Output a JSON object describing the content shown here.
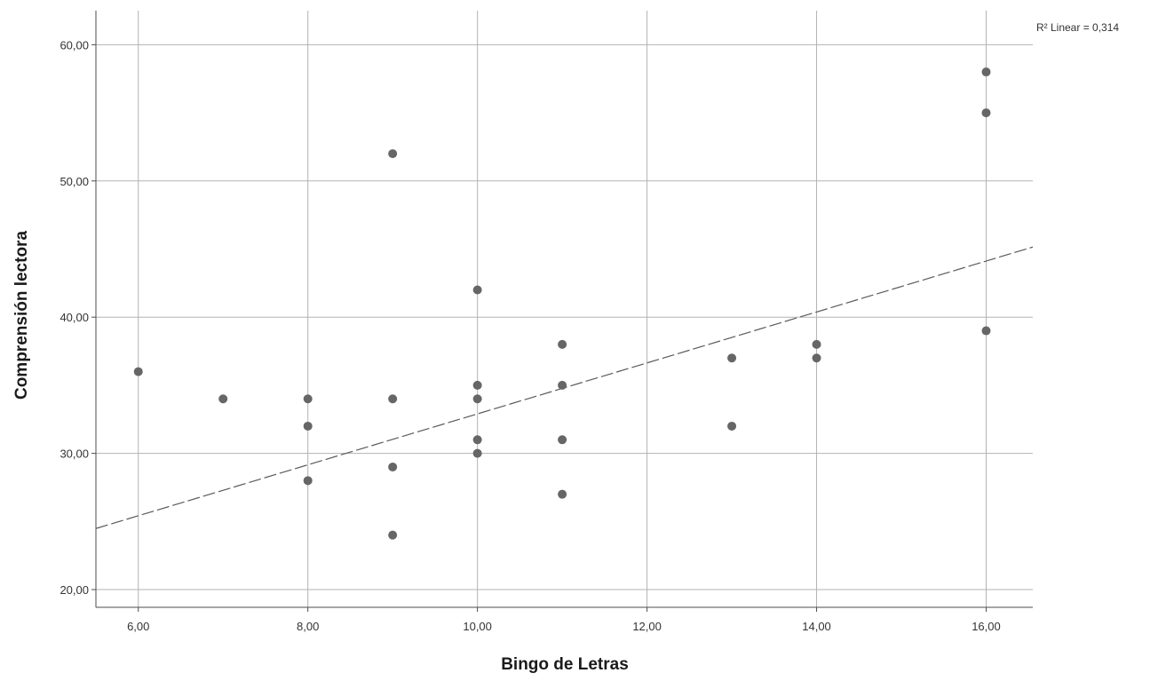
{
  "chart_data": {
    "type": "scatter",
    "xlabel": "Bingo de Letras",
    "ylabel": "Comprensión lectora",
    "xlim": [
      5.5,
      16.55
    ],
    "ylim": [
      18.7,
      62.5
    ],
    "x_ticks": [
      6,
      8,
      10,
      12,
      14,
      16
    ],
    "x_tick_labels": [
      "6,00",
      "8,00",
      "10,00",
      "12,00",
      "14,00",
      "16,00"
    ],
    "y_ticks": [
      20,
      30,
      40,
      50,
      60
    ],
    "y_tick_labels": [
      "20,00",
      "30,00",
      "40,00",
      "50,00",
      "60,00"
    ],
    "grid": true,
    "points": [
      {
        "x": 6,
        "y": 36
      },
      {
        "x": 7,
        "y": 34
      },
      {
        "x": 8,
        "y": 34
      },
      {
        "x": 8,
        "y": 32
      },
      {
        "x": 8,
        "y": 28
      },
      {
        "x": 9,
        "y": 52
      },
      {
        "x": 9,
        "y": 34
      },
      {
        "x": 9,
        "y": 29
      },
      {
        "x": 9,
        "y": 24
      },
      {
        "x": 10,
        "y": 42
      },
      {
        "x": 10,
        "y": 35
      },
      {
        "x": 10,
        "y": 34
      },
      {
        "x": 10,
        "y": 31
      },
      {
        "x": 10,
        "y": 30
      },
      {
        "x": 11,
        "y": 38
      },
      {
        "x": 11,
        "y": 35
      },
      {
        "x": 11,
        "y": 31
      },
      {
        "x": 11,
        "y": 27
      },
      {
        "x": 13,
        "y": 37
      },
      {
        "x": 13,
        "y": 32
      },
      {
        "x": 14,
        "y": 38
      },
      {
        "x": 14,
        "y": 37
      },
      {
        "x": 16,
        "y": 58
      },
      {
        "x": 16,
        "y": 55
      },
      {
        "x": 16,
        "y": 39
      }
    ],
    "fit_line": {
      "intercept": 14.2,
      "slope": 1.87,
      "style": "dashed"
    },
    "annotation": "R² Linear = 0,314",
    "colors": {
      "points": "#666666",
      "grid": "#b3b3b3",
      "axis": "#4d4d4d",
      "fit_line": "#5a5a5a"
    }
  }
}
